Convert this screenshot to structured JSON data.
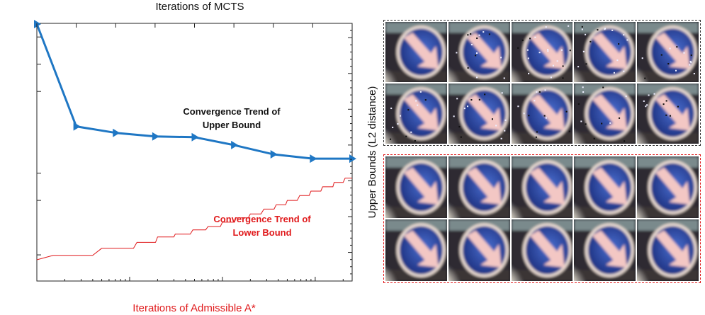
{
  "chart_data": {
    "type": "line",
    "axes": {
      "bottom": {
        "label": "Iterations of Admissible A*",
        "scale": "log",
        "range": [
          1,
          2500
        ],
        "ticks": [
          {
            "value": 1,
            "base": "10",
            "exp": "0"
          },
          {
            "value": 10,
            "base": "10",
            "exp": "1"
          },
          {
            "value": 100,
            "base": "10",
            "exp": "2"
          },
          {
            "value": 1000,
            "base": "10",
            "exp": "3"
          }
        ],
        "color": "#e0191b"
      },
      "top": {
        "label": "Iterations of MCTS",
        "range": [
          1,
          9
        ],
        "ticks": [
          "1",
          "2",
          "3",
          "4",
          "5",
          "6",
          "7",
          "8",
          "9"
        ],
        "color": "#111111"
      },
      "left": {
        "label": "",
        "range": [
          1.46122,
          1.46595
        ],
        "ticks": [
          "1.4657",
          "1.4652",
          "1.4647",
          "1.4632",
          "1.4627",
          "1.4617"
        ],
        "color": "#e0191b"
      },
      "right": {
        "label": "Upper Bounds (L2 distance)",
        "range": [
          -14,
          22
        ],
        "ticks": [
          20,
          15,
          10,
          5,
          0,
          -5,
          -10
        ],
        "color": "#111111"
      }
    },
    "series": [
      {
        "axes": "top-right",
        "color": "#1f77c4",
        "marker": "triangle-right",
        "x": [
          1,
          2,
          3,
          4,
          5,
          6,
          7,
          8,
          9
        ],
        "y": [
          21.9,
          7.6,
          6.7,
          6.2,
          6.1,
          5.0,
          3.7,
          3.1,
          3.1
        ]
      },
      {
        "axes": "bottom-left",
        "color": "#e0191b",
        "step": true,
        "x": [
          1,
          1.5,
          4,
          5,
          11,
          12,
          19,
          20,
          30,
          31,
          45,
          48,
          66,
          70,
          95,
          100,
          135,
          140,
          190,
          200,
          260,
          280,
          360,
          380,
          480,
          500,
          640,
          680,
          860,
          900,
          1150,
          1200,
          1550,
          1600,
          2000,
          2100,
          2500
        ],
        "y": [
          1.46161,
          1.46169,
          1.46169,
          1.46182,
          1.46182,
          1.46193,
          1.46193,
          1.46203,
          1.46203,
          1.46208,
          1.46208,
          1.46216,
          1.46216,
          1.46222,
          1.46222,
          1.4623,
          1.4623,
          1.46238,
          1.46238,
          1.46245,
          1.46245,
          1.46254,
          1.46254,
          1.46262,
          1.46262,
          1.4627,
          1.4627,
          1.46279,
          1.46279,
          1.46287,
          1.46287,
          1.46295,
          1.46295,
          1.46303,
          1.46303,
          1.46311,
          1.46311
        ]
      }
    ],
    "annotations": [
      {
        "lines": [
          "Convergence Trend of",
          "Upper Bound"
        ],
        "color": "#111111"
      },
      {
        "lines": [
          "Convergence Trend of",
          "Lower Bound"
        ],
        "color": "#e0191b"
      }
    ],
    "grid": false
  },
  "image_panels": [
    {
      "border_color": "#333333",
      "rows": 2,
      "cols": 5,
      "noise": "upper"
    },
    {
      "border_color": "#e0191b",
      "rows": 2,
      "cols": 5,
      "noise": "lower"
    }
  ]
}
